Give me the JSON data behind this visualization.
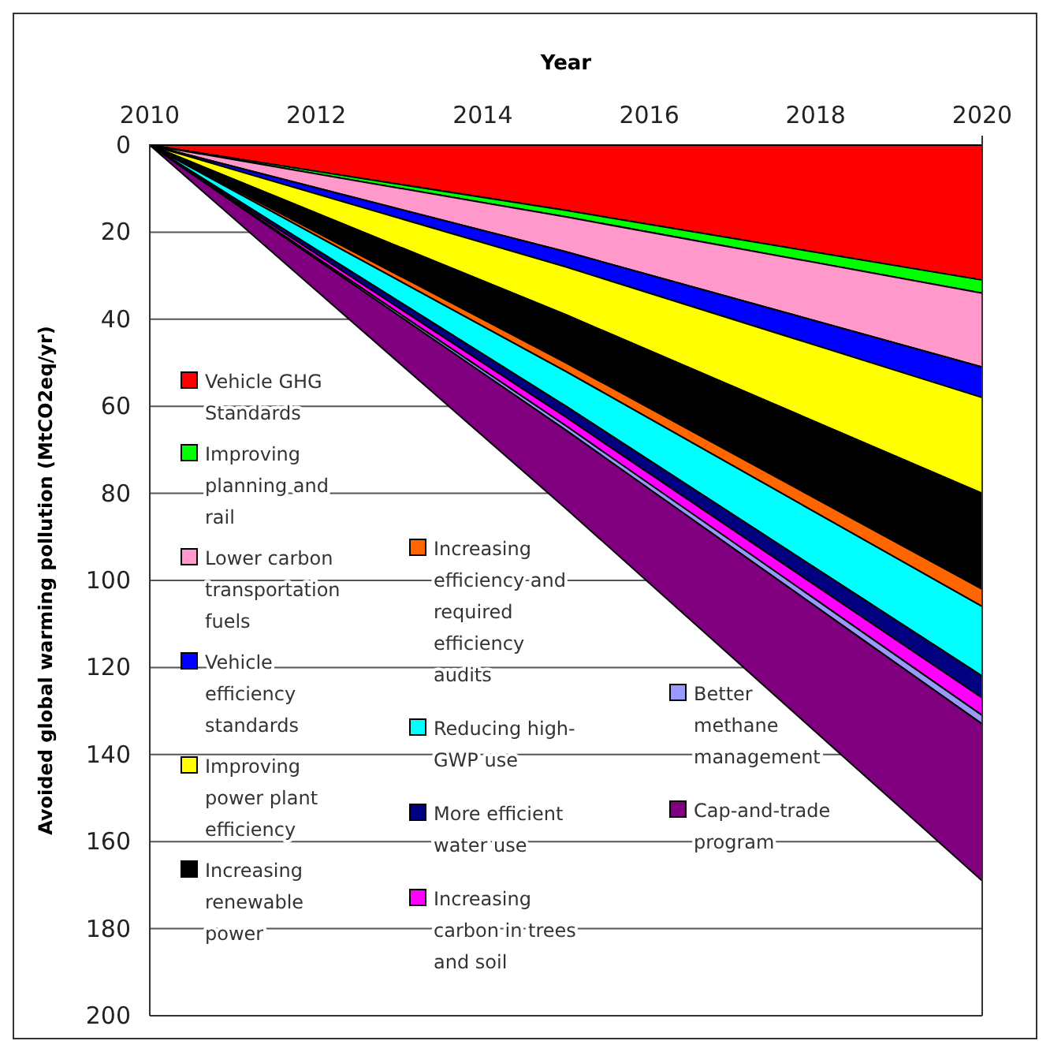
{
  "chart_data": {
    "type": "area",
    "stacked": true,
    "xlabel": "Year",
    "ylabel": "Avoided global warming pollution (MtCO2eq/yr)",
    "x": [
      2010,
      2015,
      2020
    ],
    "xlim": [
      2010,
      2020
    ],
    "xticks": [
      2010,
      2012,
      2014,
      2016,
      2018,
      2020
    ],
    "ylim": [
      200,
      0
    ],
    "yticks": [
      0,
      20,
      40,
      60,
      80,
      100,
      120,
      140,
      160,
      180,
      200
    ],
    "grid": "y",
    "legend": "bottom left",
    "series": [
      {
        "name": "Vehicle GHG Standards",
        "color": "#ff0000",
        "values": [
          0,
          15,
          31
        ]
      },
      {
        "name": "Improving planning and rail",
        "color": "#00ff00",
        "values": [
          0,
          1.5,
          3
        ]
      },
      {
        "name": "Lower carbon transportation fuels",
        "color": "#ff99cc",
        "values": [
          0,
          8,
          17
        ]
      },
      {
        "name": "Vehicle efficiency standards",
        "color": "#0000ff",
        "values": [
          0,
          3.5,
          7
        ]
      },
      {
        "name": "Improving power plant efficiency",
        "color": "#ffff00",
        "values": [
          0,
          11,
          22
        ]
      },
      {
        "name": "Increasing renewable power",
        "color": "#000000",
        "values": [
          0,
          11,
          22
        ]
      },
      {
        "name": "Increasing efficiency and required efficiency audits",
        "color": "#ff6600",
        "values": [
          0,
          2,
          4
        ]
      },
      {
        "name": "Reducing high-GWP use",
        "color": "#00ffff",
        "values": [
          0,
          8,
          16
        ]
      },
      {
        "name": "More efficient water use",
        "color": "#000080",
        "values": [
          0,
          2.5,
          5
        ]
      },
      {
        "name": "Increasing carbon in trees and soil",
        "color": "#ff00ff",
        "values": [
          0,
          2,
          4
        ]
      },
      {
        "name": "Better methane management",
        "color": "#9999ff",
        "values": [
          0,
          1,
          2
        ]
      },
      {
        "name": "Cap-and-trade program",
        "color": "#800080",
        "values": [
          0,
          18,
          36
        ]
      }
    ]
  }
}
